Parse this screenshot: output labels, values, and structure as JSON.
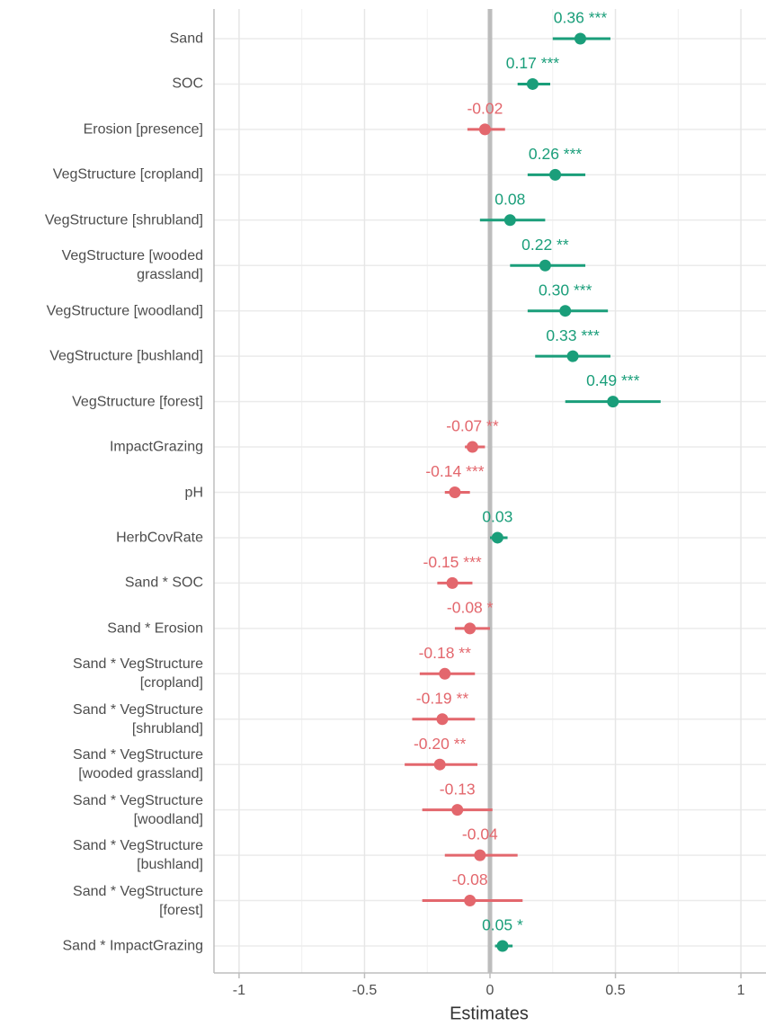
{
  "chart_data": {
    "type": "forest",
    "x_label": "Estimates",
    "categories": [
      "Sand",
      "SOC",
      "Erosion [presence]",
      "VegStructure [cropland]",
      "VegStructure [shrubland]",
      "VegStructure [wooded\ngrassland]",
      "VegStructure [woodland]",
      "VegStructure [bushland]",
      "VegStructure [forest]",
      "ImpactGrazing",
      "pH",
      "HerbCovRate",
      "Sand * SOC",
      "Sand * Erosion",
      "Sand * VegStructure\n[cropland]",
      "Sand * VegStructure\n[shrubland]",
      "Sand * VegStructure\n[wooded grassland]",
      "Sand * VegStructure\n[woodland]",
      "Sand * VegStructure\n[bushland]",
      "Sand * VegStructure\n[forest]",
      "Sand * ImpactGrazing"
    ],
    "values": [
      0.36,
      0.17,
      -0.02,
      0.26,
      0.08,
      0.22,
      0.3,
      0.33,
      0.49,
      -0.07,
      -0.14,
      0.03,
      -0.15,
      -0.08,
      -0.18,
      -0.19,
      -0.2,
      -0.13,
      -0.04,
      -0.08,
      0.05
    ],
    "value_labels": [
      "0.36 ***",
      "0.17 ***",
      "-0.02",
      "0.26 ***",
      "0.08",
      "0.22 **",
      "0.30 ***",
      "0.33 ***",
      "0.49 ***",
      "-0.07 **",
      "-0.14 ***",
      "0.03",
      "-0.15 ***",
      "-0.08 *",
      "-0.18 **",
      "-0.19 **",
      "-0.20 **",
      "-0.13",
      "-0.04",
      "-0.08",
      "0.05 *"
    ],
    "ci_low": [
      0.25,
      0.11,
      -0.09,
      0.15,
      -0.04,
      0.08,
      0.15,
      0.18,
      0.3,
      -0.1,
      -0.18,
      0.0,
      -0.21,
      -0.14,
      -0.28,
      -0.31,
      -0.34,
      -0.27,
      -0.18,
      -0.27,
      0.02
    ],
    "ci_high": [
      0.48,
      0.24,
      0.06,
      0.38,
      0.22,
      0.38,
      0.47,
      0.48,
      0.68,
      -0.02,
      -0.08,
      0.07,
      -0.07,
      0.0,
      -0.06,
      -0.06,
      -0.05,
      0.01,
      0.11,
      0.13,
      0.09
    ],
    "positive_color": "#1a9e7a",
    "negative_color": "#e3676d",
    "xlim": [
      -1.1,
      1.1
    ],
    "xticks": [
      -1,
      -0.5,
      0,
      0.5,
      1
    ],
    "x_minor_ticks": [
      -0.75,
      -0.25,
      0.25,
      0.75
    ],
    "reference_line": 0,
    "grid": true
  }
}
